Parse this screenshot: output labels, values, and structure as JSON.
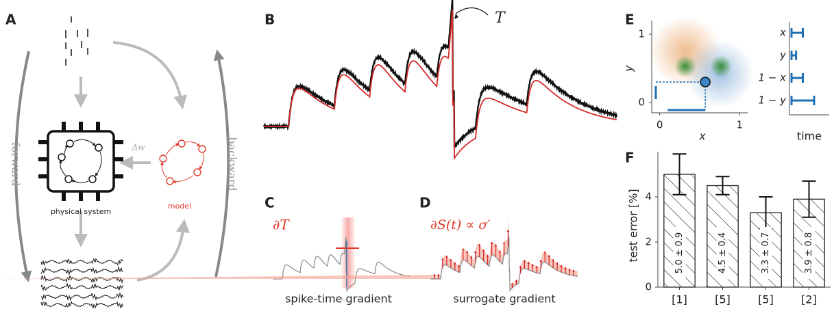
{
  "figure": {
    "A": {
      "letter": "A",
      "forward": "forward",
      "backward": "backward",
      "system": "physical system",
      "model": "model",
      "delta": "Δw"
    },
    "B": {
      "letter": "B",
      "annotation": "T"
    },
    "C": {
      "letter": "C",
      "annotation": "∂T",
      "caption": "spike-time gradient"
    },
    "D": {
      "letter": "D",
      "annotation": "∂S(t) ∝ σ′",
      "caption": "surrogate gradient"
    },
    "E": {
      "letter": "E",
      "xlabel": "x",
      "ylabel": "y",
      "xlim": [
        -0.1,
        1.1
      ],
      "ylim": [
        -0.15,
        1.2
      ],
      "xticks": [
        0,
        1
      ],
      "yticks": [
        0,
        1
      ],
      "point": {
        "x": 0.57,
        "y": 0.3
      },
      "timeline": {
        "labels": [
          "x",
          "y",
          "1 − x",
          "1 − y"
        ],
        "durations": [
          0.3,
          0.12,
          0.3,
          0.6
        ],
        "xlabel": "time"
      }
    }
  },
  "chart_data": {
    "type": "bar",
    "letter": "F",
    "ylabel": "test error [%]",
    "categories": [
      "[1]",
      "[5]",
      "[5]",
      "[2]"
    ],
    "values": [
      5.0,
      4.5,
      3.3,
      3.9
    ],
    "errors": [
      0.9,
      0.4,
      0.7,
      0.8
    ],
    "value_labels": [
      "5.0 ± 0.9",
      "4.5 ± 0.4",
      "3.3 ± 0.7",
      "3.9 ± 0.8"
    ],
    "ylim": [
      0,
      6
    ],
    "yticks": [
      0,
      2,
      4
    ],
    "color": "#ffffff"
  }
}
